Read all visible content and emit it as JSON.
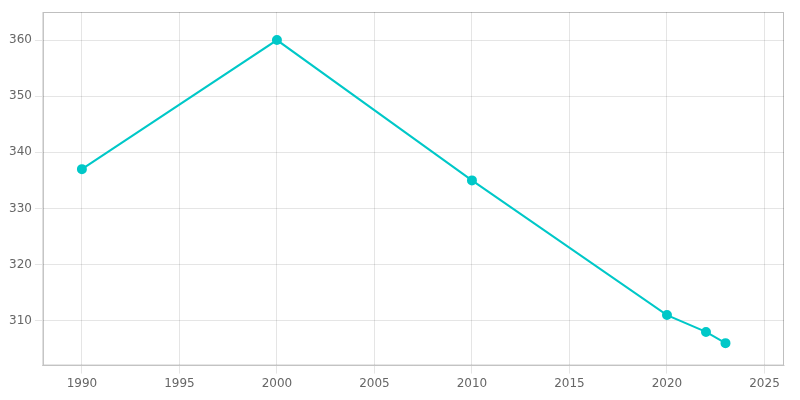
{
  "chart_data": {
    "type": "line",
    "x": [
      1990,
      2000,
      2010,
      2020,
      2022,
      2023
    ],
    "values": [
      337,
      360,
      335,
      311,
      308,
      306
    ],
    "color": "#00C8C8",
    "marker": "circle",
    "xlim": [
      1988,
      2026
    ],
    "ylim": [
      302,
      365
    ],
    "xticks": [
      1990,
      1995,
      2000,
      2005,
      2010,
      2015,
      2020,
      2025
    ],
    "yticks": [
      310,
      320,
      330,
      340,
      350,
      360
    ],
    "grid": true
  }
}
